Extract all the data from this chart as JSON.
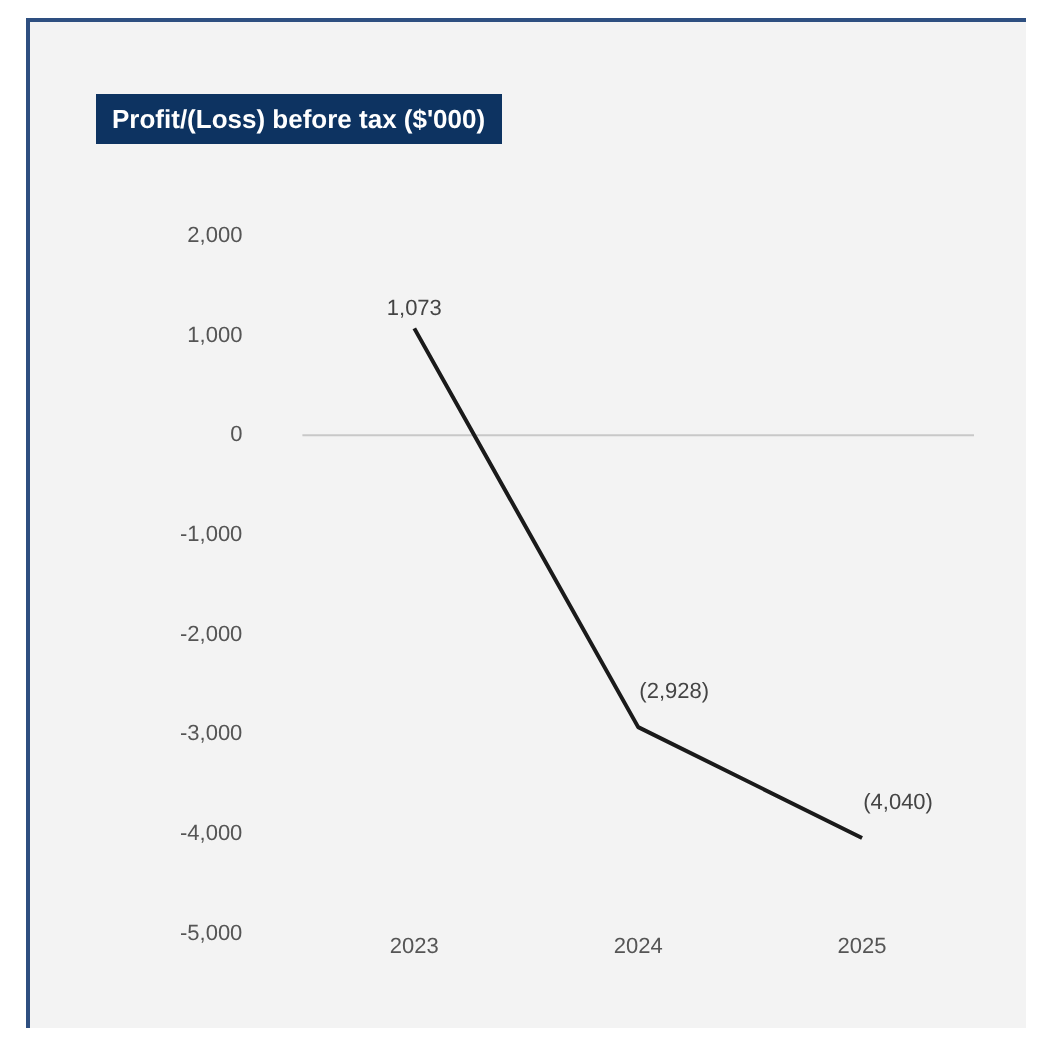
{
  "chart_data": {
    "type": "line",
    "title": "Profit/(Loss) before tax ($'000)",
    "categories": [
      "2023",
      "2024",
      "2025"
    ],
    "series": [
      {
        "color": "#1a1a1a",
        "values": [
          1073,
          -2928,
          -4040
        ],
        "value_labels": [
          "1,073",
          "(2,928)",
          "(4,040)"
        ]
      }
    ],
    "ylim": [
      -5000,
      2000
    ],
    "yticks": [
      {
        "value": 2000,
        "label": "2,000"
      },
      {
        "value": 1000,
        "label": "1,000"
      },
      0,
      {
        "value": -1000,
        "label": "-1,000"
      },
      {
        "value": -2000,
        "label": "-2,000"
      },
      {
        "value": -3000,
        "label": "-3,000"
      },
      {
        "value": -4000,
        "label": "-4,000"
      },
      {
        "value": -5000,
        "label": "-5,000"
      }
    ],
    "ref_lines": [
      {
        "axis": "y",
        "value": 0,
        "color": "#c8c8c8"
      }
    ],
    "grid": false,
    "legend": false,
    "marker": "none",
    "line_style": "solid"
  }
}
